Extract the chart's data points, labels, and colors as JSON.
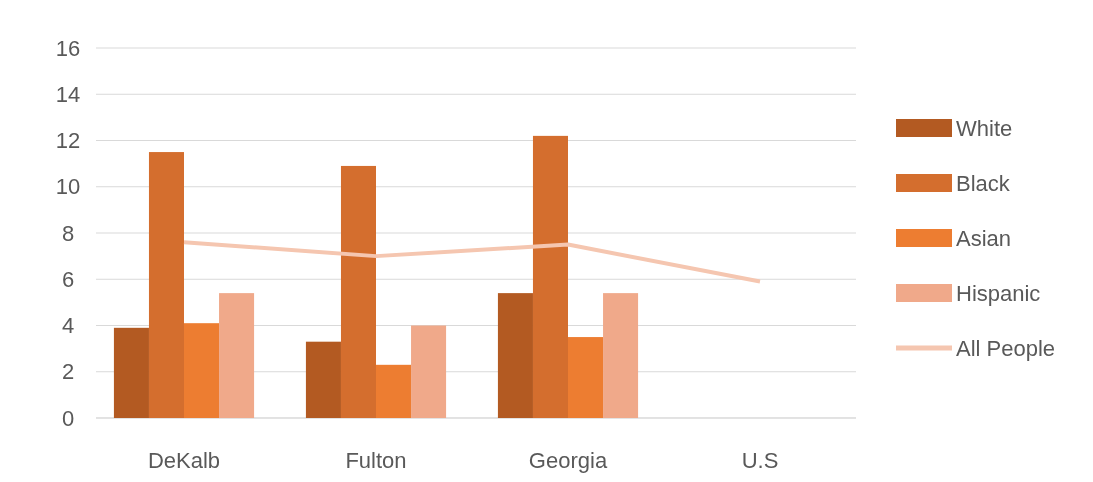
{
  "chart_data": {
    "type": "bar",
    "categories": [
      "DeKalb",
      "Fulton",
      "Georgia",
      "U.S"
    ],
    "series": [
      {
        "name": "White",
        "color": "#b35a22",
        "values": [
          3.9,
          3.3,
          5.4,
          null
        ]
      },
      {
        "name": "Black",
        "color": "#d46e2e",
        "values": [
          11.5,
          10.9,
          12.2,
          null
        ]
      },
      {
        "name": "Asian",
        "color": "#ed7d31",
        "values": [
          4.1,
          2.3,
          3.5,
          null
        ]
      },
      {
        "name": "Hispanic",
        "color": "#f0a98a",
        "values": [
          5.4,
          4.0,
          5.4,
          null
        ]
      },
      {
        "name": "All People",
        "type": "line",
        "color": "#f5c6b0",
        "values": [
          7.6,
          7.0,
          7.5,
          5.9
        ]
      }
    ],
    "ylim": [
      0,
      16
    ],
    "yticks": [
      0,
      2,
      4,
      6,
      8,
      10,
      12,
      14,
      16
    ],
    "grid": "y",
    "legend": "right"
  }
}
